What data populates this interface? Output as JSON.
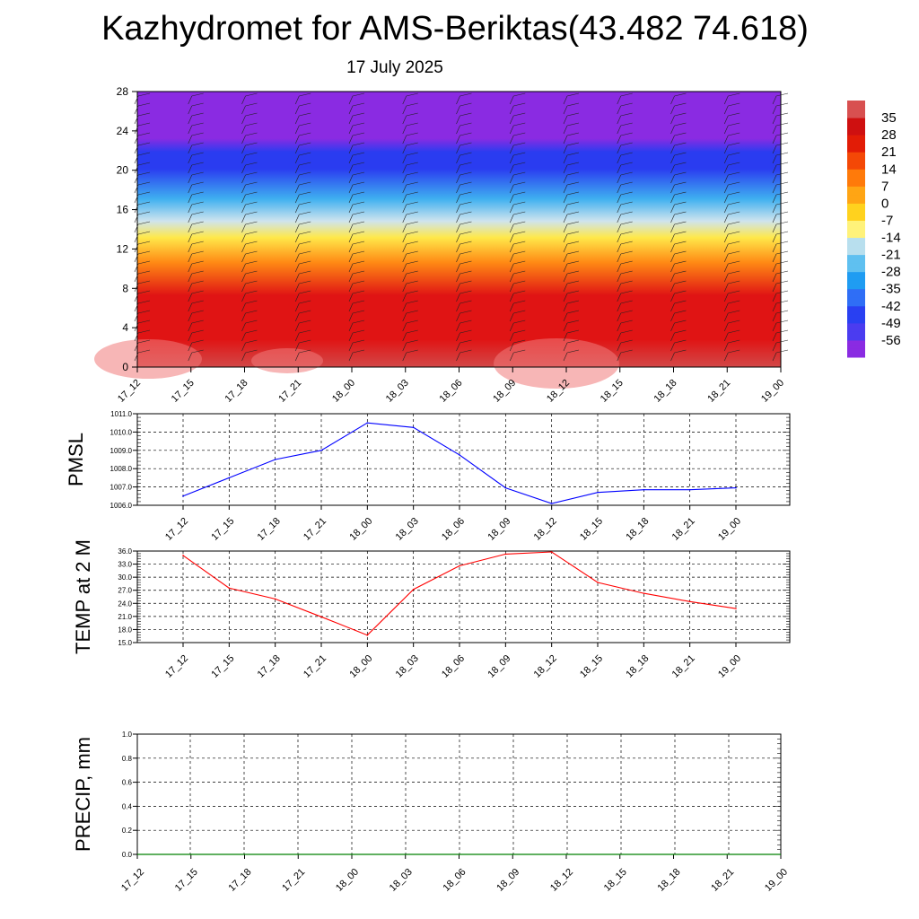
{
  "page": {
    "title": "Kazhydromet for AMS-Beriktas(43.482 74.618)",
    "subtitle": "17 July 2025"
  },
  "chart_data": [
    {
      "type": "heatmap",
      "name": "temperature-wind-section",
      "ylim": [
        0,
        28
      ],
      "yticks": [
        0,
        4,
        8,
        12,
        16,
        20,
        24,
        28
      ],
      "x_tick_labels": [
        "17_12",
        "17_15",
        "17_18",
        "17_21",
        "18_00",
        "18_03",
        "18_06",
        "18_09",
        "18_12",
        "18_15",
        "18_18",
        "18_21",
        "19_00"
      ],
      "colorbar": {
        "labels": [
          "35",
          "28",
          "21",
          "14",
          "7",
          "0",
          "-7",
          "-14",
          "-21",
          "-28",
          "-35",
          "-42",
          "-49",
          "-56"
        ],
        "range": [
          -63,
          42
        ],
        "stops": [
          {
            "v": -63,
            "c": "#8a2be2"
          },
          {
            "v": -56,
            "c": "#4b3cf0"
          },
          {
            "v": -49,
            "c": "#2940f2"
          },
          {
            "v": -42,
            "c": "#2f6ef6"
          },
          {
            "v": -35,
            "c": "#1f9cf2"
          },
          {
            "v": -28,
            "c": "#5fc0f0"
          },
          {
            "v": -21,
            "c": "#b8dfee"
          },
          {
            "v": -14,
            "c": "#fff27a"
          },
          {
            "v": -7,
            "c": "#ffd21e"
          },
          {
            "v": 0,
            "c": "#ffa514"
          },
          {
            "v": 7,
            "c": "#ff7a0a"
          },
          {
            "v": 14,
            "c": "#f44806"
          },
          {
            "v": 21,
            "c": "#e21c06"
          },
          {
            "v": 28,
            "c": "#cf1010"
          },
          {
            "v": 35,
            "c": "#d85050"
          },
          {
            "v": 42,
            "c": "#f0b8b8"
          }
        ]
      },
      "colors": {
        "top": "#8a2be2",
        "blue_band": "#2a3cf0",
        "cyan": "#3fb0f0",
        "pale": "#cfe4ee",
        "yellow": "#ffe84a",
        "orange": "#ff8a14",
        "red": "#e01414",
        "surface": "#d24848"
      }
    },
    {
      "type": "line",
      "name": "PMSL",
      "ylabel": "PMSL",
      "ylim": [
        1006.0,
        1011.0
      ],
      "yticks": [
        "1006.0",
        "1007.0",
        "1008.0",
        "1009.0",
        "1010.0",
        "1011.0"
      ],
      "categories": [
        "17_12",
        "17_15",
        "17_18",
        "17_21",
        "18_00",
        "18_03",
        "18_06",
        "18_09",
        "18_12",
        "18_15",
        "18_18",
        "18_21",
        "19_00"
      ],
      "values": [
        1006.5,
        1007.5,
        1008.5,
        1009.0,
        1010.5,
        1010.25,
        1008.75,
        1006.95,
        1006.1,
        1006.7,
        1006.85,
        1006.85,
        1006.95
      ],
      "color": "#0000ff",
      "grid": true
    },
    {
      "type": "line",
      "name": "TEMP at 2 M",
      "ylabel": "TEMP at 2 M",
      "ylim": [
        15.0,
        36.0
      ],
      "yticks": [
        "15.0",
        "18.0",
        "21.0",
        "24.0",
        "27.0",
        "30.0",
        "33.0",
        "36.0"
      ],
      "categories": [
        "17_12",
        "17_15",
        "17_18",
        "17_21",
        "18_00",
        "18_03",
        "18_06",
        "18_09",
        "18_12",
        "18_15",
        "18_18",
        "18_21",
        "19_00"
      ],
      "values": [
        35.0,
        27.5,
        25.0,
        20.9,
        16.7,
        27.2,
        32.6,
        35.3,
        35.8,
        28.8,
        26.3,
        24.4,
        22.8
      ],
      "color": "#ff0000",
      "grid": true
    },
    {
      "type": "line",
      "name": "PRECIP, mm",
      "ylabel": "PRECIP, mm",
      "ylim": [
        0.0,
        1.0
      ],
      "yticks": [
        "0.0",
        "0.2",
        "0.4",
        "0.6",
        "0.8",
        "1.0"
      ],
      "x_tick_labels": [
        "17_12",
        "17_15",
        "17_18",
        "17_21",
        "18_00",
        "18_03",
        "18_06",
        "18_09",
        "18_12",
        "18_15",
        "18_18",
        "18_21",
        "19_00"
      ],
      "values": [
        0,
        0,
        0,
        0,
        0,
        0,
        0,
        0,
        0,
        0,
        0,
        0,
        0
      ],
      "color": "#008000",
      "grid": true
    }
  ]
}
